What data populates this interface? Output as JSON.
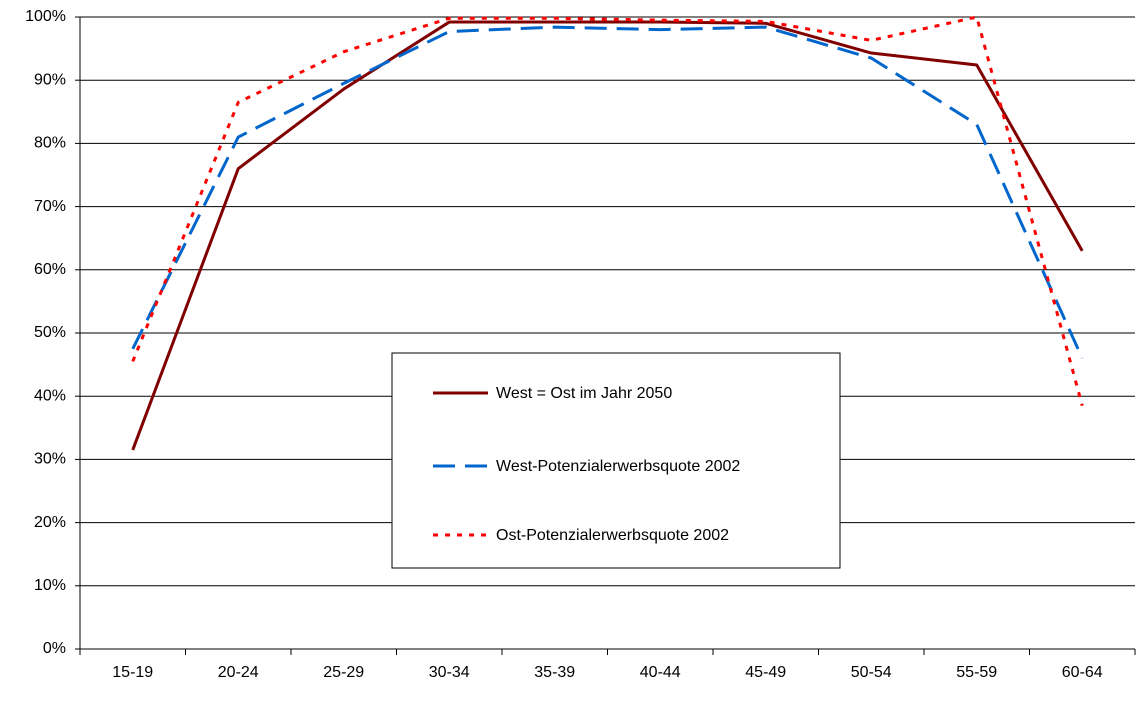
{
  "chart_data": {
    "type": "line",
    "categories": [
      "15-19",
      "20-24",
      "25-29",
      "30-34",
      "35-39",
      "40-44",
      "45-49",
      "50-54",
      "55-59",
      "60-64"
    ],
    "series": [
      {
        "name": "West = Ost im Jahr 2050",
        "color": "#800000",
        "dash": "solid",
        "values": [
          31.5,
          76,
          88.6,
          99.2,
          99.2,
          99.2,
          99,
          94.3,
          92.4,
          63
        ]
      },
      {
        "name": "West-Potenzialerwerbsquote 2002",
        "color": "#0066cc",
        "dash": "dashed",
        "values": [
          47.5,
          81,
          89.5,
          97.7,
          98.4,
          98,
          98.4,
          93.5,
          83,
          46
        ]
      },
      {
        "name": "Ost-Potenzialerwerbsquote 2002",
        "color": "#ff0000",
        "dash": "dotted",
        "values": [
          45.5,
          86.5,
          94.5,
          99.8,
          99.8,
          99.5,
          99.3,
          96.3,
          100,
          38.5
        ]
      }
    ],
    "ylim": [
      0,
      100
    ],
    "yticks": [
      {
        "value": 0,
        "label": "0%"
      },
      {
        "value": 10,
        "label": "10%"
      },
      {
        "value": 20,
        "label": "20%"
      },
      {
        "value": 30,
        "label": "30%"
      },
      {
        "value": 40,
        "label": "40%"
      },
      {
        "value": 50,
        "label": "50%"
      },
      {
        "value": 60,
        "label": "60%"
      },
      {
        "value": 70,
        "label": "70%"
      },
      {
        "value": 80,
        "label": "80%"
      },
      {
        "value": 90,
        "label": "90%"
      },
      {
        "value": 100,
        "label": "100%"
      }
    ],
    "grid": true,
    "legend": "center"
  }
}
